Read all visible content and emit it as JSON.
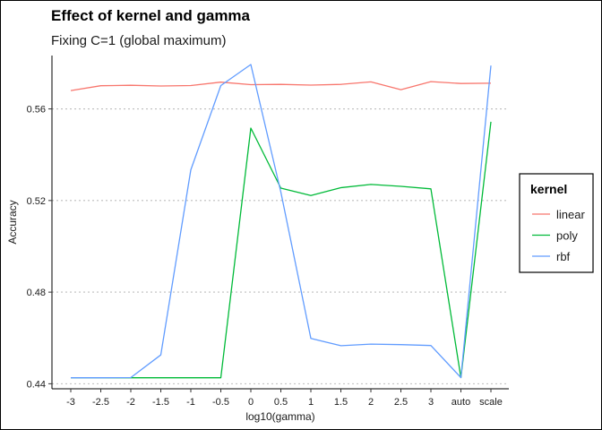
{
  "chart_data": {
    "type": "line",
    "title": "Effect of kernel and gamma",
    "subtitle": "Fixing C=1 (global maximum)",
    "xlabel": "log10(gamma)",
    "ylabel": "Accuracy",
    "categories": [
      "-3",
      "-2.5",
      "-2",
      "-1.5",
      "-1",
      "-0.5",
      "0",
      "0.5",
      "1",
      "1.5",
      "2",
      "2.5",
      "3",
      "auto",
      "scale"
    ],
    "yticks": [
      0.44,
      0.48,
      0.52,
      0.56
    ],
    "ytick_labels": [
      "0.44",
      "0.48",
      "0.52",
      "0.56"
    ],
    "ylim": [
      0.4378,
      0.5833
    ],
    "grid": "horizontal dotted at y ticks",
    "legend": {
      "title": "kernel",
      "position": "right"
    },
    "series": [
      {
        "name": "linear",
        "color": "#F8766D",
        "values": [
          0.568,
          0.5701,
          0.5703,
          0.57,
          0.5702,
          0.5717,
          0.5706,
          0.5707,
          0.5704,
          0.5707,
          0.5718,
          0.5684,
          0.5719,
          0.5711,
          0.5712
        ]
      },
      {
        "name": "poly",
        "color": "#00BA38",
        "values": [
          0.4426,
          0.4426,
          0.4426,
          0.4426,
          0.4426,
          0.4426,
          0.5516,
          0.5254,
          0.5222,
          0.5256,
          0.527,
          0.5262,
          0.5251,
          0.4427,
          0.5544
        ]
      },
      {
        "name": "rbf",
        "color": "#619CFF",
        "values": [
          0.4426,
          0.4426,
          0.4427,
          0.4526,
          0.5334,
          0.5702,
          0.5794,
          0.5237,
          0.4598,
          0.4566,
          0.4573,
          0.4571,
          0.4567,
          0.4427,
          0.5789
        ]
      }
    ]
  }
}
